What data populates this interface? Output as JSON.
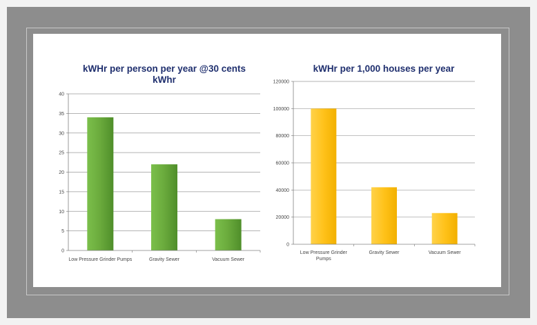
{
  "chart_data": [
    {
      "type": "bar",
      "title_lines": [
        "kWHr per person per year @30 cents",
        "kWhr"
      ],
      "categories": [
        "Low Pressure Grinder Pumps",
        "Gravity Sewer",
        "Vacuum Sewer"
      ],
      "category_lines": [
        [
          "Low Pressure Grinder Pumps"
        ],
        [
          "Gravity Sewer"
        ],
        [
          "Vacuum Sewer"
        ]
      ],
      "values": [
        34,
        22,
        8
      ],
      "ylim": [
        0,
        40
      ],
      "yticks": [
        0,
        5,
        10,
        15,
        20,
        25,
        30,
        35,
        40
      ],
      "ytick_labels": [
        "0",
        "5",
        "10",
        "15",
        "20",
        "25",
        "30",
        "35",
        "40"
      ],
      "grid": true,
      "bar_color": "#6aaa3c",
      "bar_color_light": "#7bbf4b",
      "bar_color_dark": "#4f8e2a"
    },
    {
      "type": "bar",
      "title_lines": [
        "kWHr per 1,000 houses per year"
      ],
      "categories": [
        "Low Pressure Grinder Pumps",
        "Gravity Sewer",
        "Vacuum Sewer"
      ],
      "category_lines": [
        [
          "Low Pressure Grinder",
          "Pumps"
        ],
        [
          "Gravity Sewer"
        ],
        [
          "Vacuum Sewer"
        ]
      ],
      "values": [
        100000,
        42000,
        23000
      ],
      "ylim": [
        0,
        120000
      ],
      "yticks": [
        0,
        20000,
        40000,
        60000,
        80000,
        100000,
        120000
      ],
      "ytick_labels": [
        "0",
        "20000",
        "40000",
        "60000",
        "80000",
        "100000",
        "120000"
      ],
      "grid": true,
      "bar_color": "#ffc21a",
      "bar_color_light": "#ffd24a",
      "bar_color_dark": "#f2b000"
    }
  ]
}
